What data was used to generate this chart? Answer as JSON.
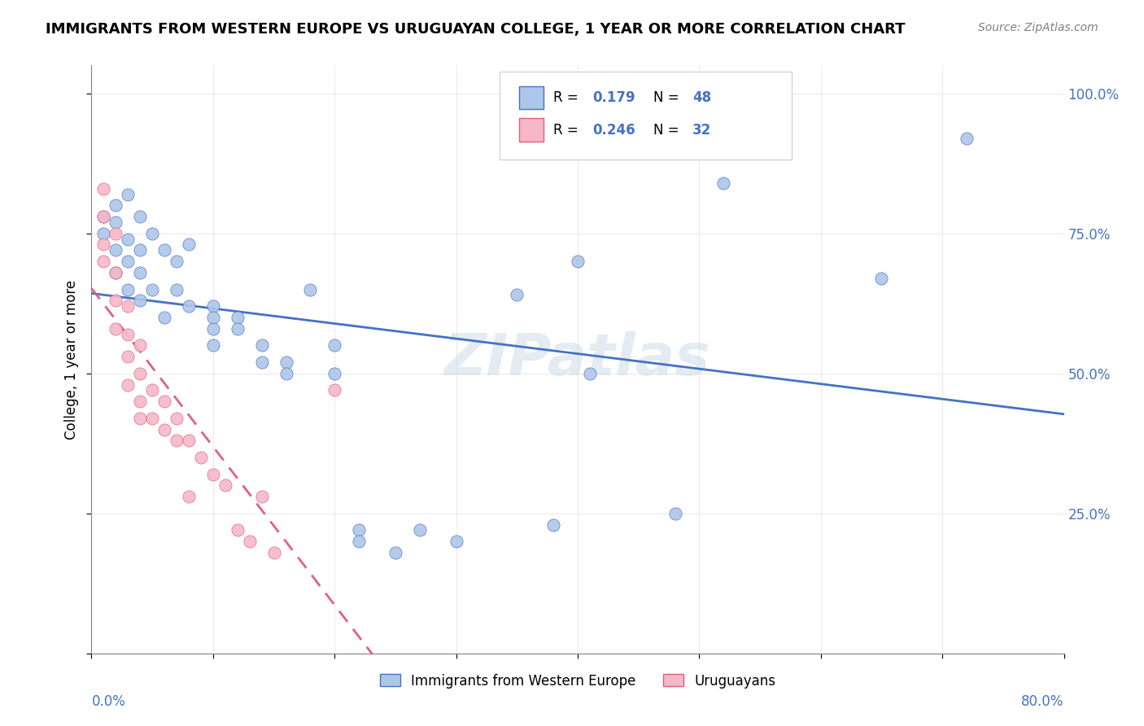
{
  "title": "IMMIGRANTS FROM WESTERN EUROPE VS URUGUAYAN COLLEGE, 1 YEAR OR MORE CORRELATION CHART",
  "source": "Source: ZipAtlas.com",
  "ylabel": "College, 1 year or more",
  "legend_blue_R": "0.179",
  "legend_blue_N": "48",
  "legend_pink_R": "0.246",
  "legend_pink_N": "32",
  "watermark": "ZIPatlas",
  "blue_color": "#aec6e8",
  "blue_line_color": "#4472c4",
  "pink_color": "#f4b8c8",
  "pink_line_color": "#e06080",
  "blue_scatter": [
    [
      0.01,
      0.78
    ],
    [
      0.01,
      0.75
    ],
    [
      0.02,
      0.8
    ],
    [
      0.02,
      0.77
    ],
    [
      0.02,
      0.72
    ],
    [
      0.02,
      0.68
    ],
    [
      0.03,
      0.82
    ],
    [
      0.03,
      0.74
    ],
    [
      0.03,
      0.7
    ],
    [
      0.03,
      0.65
    ],
    [
      0.04,
      0.78
    ],
    [
      0.04,
      0.72
    ],
    [
      0.04,
      0.68
    ],
    [
      0.04,
      0.63
    ],
    [
      0.05,
      0.75
    ],
    [
      0.05,
      0.65
    ],
    [
      0.06,
      0.72
    ],
    [
      0.06,
      0.6
    ],
    [
      0.07,
      0.7
    ],
    [
      0.07,
      0.65
    ],
    [
      0.08,
      0.73
    ],
    [
      0.08,
      0.62
    ],
    [
      0.1,
      0.62
    ],
    [
      0.1,
      0.6
    ],
    [
      0.1,
      0.58
    ],
    [
      0.1,
      0.55
    ],
    [
      0.12,
      0.6
    ],
    [
      0.12,
      0.58
    ],
    [
      0.14,
      0.55
    ],
    [
      0.14,
      0.52
    ],
    [
      0.16,
      0.52
    ],
    [
      0.16,
      0.5
    ],
    [
      0.18,
      0.65
    ],
    [
      0.2,
      0.55
    ],
    [
      0.2,
      0.5
    ],
    [
      0.22,
      0.22
    ],
    [
      0.22,
      0.2
    ],
    [
      0.25,
      0.18
    ],
    [
      0.27,
      0.22
    ],
    [
      0.3,
      0.2
    ],
    [
      0.35,
      0.64
    ],
    [
      0.38,
      0.23
    ],
    [
      0.4,
      0.7
    ],
    [
      0.41,
      0.5
    ],
    [
      0.48,
      0.25
    ],
    [
      0.52,
      0.84
    ],
    [
      0.65,
      0.67
    ],
    [
      0.72,
      0.92
    ]
  ],
  "pink_scatter": [
    [
      0.01,
      0.83
    ],
    [
      0.01,
      0.78
    ],
    [
      0.01,
      0.73
    ],
    [
      0.01,
      0.7
    ],
    [
      0.02,
      0.75
    ],
    [
      0.02,
      0.68
    ],
    [
      0.02,
      0.63
    ],
    [
      0.02,
      0.58
    ],
    [
      0.03,
      0.62
    ],
    [
      0.03,
      0.57
    ],
    [
      0.03,
      0.53
    ],
    [
      0.03,
      0.48
    ],
    [
      0.04,
      0.55
    ],
    [
      0.04,
      0.5
    ],
    [
      0.04,
      0.45
    ],
    [
      0.04,
      0.42
    ],
    [
      0.05,
      0.47
    ],
    [
      0.05,
      0.42
    ],
    [
      0.06,
      0.45
    ],
    [
      0.06,
      0.4
    ],
    [
      0.07,
      0.42
    ],
    [
      0.07,
      0.38
    ],
    [
      0.08,
      0.38
    ],
    [
      0.08,
      0.28
    ],
    [
      0.09,
      0.35
    ],
    [
      0.1,
      0.32
    ],
    [
      0.11,
      0.3
    ],
    [
      0.12,
      0.22
    ],
    [
      0.13,
      0.2
    ],
    [
      0.14,
      0.28
    ],
    [
      0.15,
      0.18
    ],
    [
      0.2,
      0.47
    ]
  ],
  "xlim": [
    0.0,
    0.8
  ],
  "ylim": [
    0.0,
    1.05
  ],
  "yticks": [
    0.0,
    0.25,
    0.5,
    0.75,
    1.0
  ],
  "xticks": [
    0.0,
    0.1,
    0.2,
    0.3,
    0.4,
    0.5,
    0.6,
    0.7,
    0.8
  ]
}
